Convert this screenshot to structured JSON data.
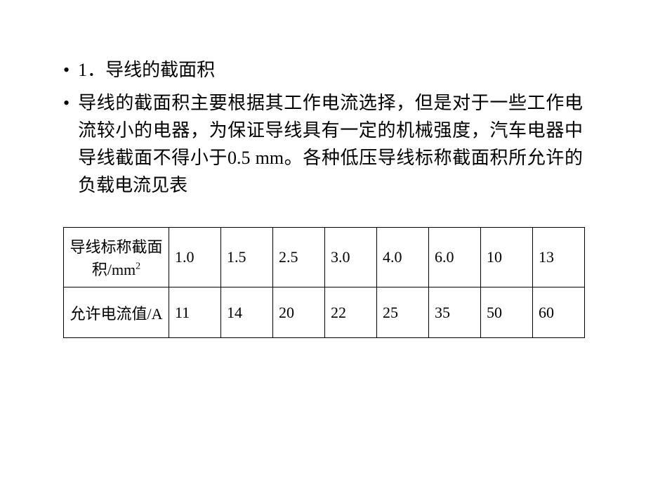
{
  "bullets": [
    {
      "marker": "•",
      "text": "1．导线的截面积"
    },
    {
      "marker": "•",
      "text": "导线的截面积主要根据其工作电流选择，但是对于一些工作电流较小的电器，为保证导线具有一定的机械强度，汽车电器中导线截面不得小于0.5 mm。各种低压导线标称截面积所允许的负载电流见表"
    }
  ],
  "table": {
    "type": "table",
    "header_labels": [
      "导线标称截面积/mm",
      "允许电流值/A"
    ],
    "superscript": "2",
    "columns": [
      "1.0",
      "1.5",
      "2.5",
      "3.0",
      "4.0",
      "6.0",
      "10",
      "13"
    ],
    "rows": [
      [
        "11",
        "14",
        "20",
        "22",
        "25",
        "35",
        "50",
        "60"
      ]
    ],
    "border_color": "#000000",
    "background_color": "#ffffff",
    "text_color": "#000000",
    "header_fontsize": 22,
    "cell_fontsize": 22
  },
  "styling": {
    "body_background": "#ffffff",
    "text_color": "#000000",
    "bullet_fontsize": 26,
    "line_height": 1.5
  }
}
